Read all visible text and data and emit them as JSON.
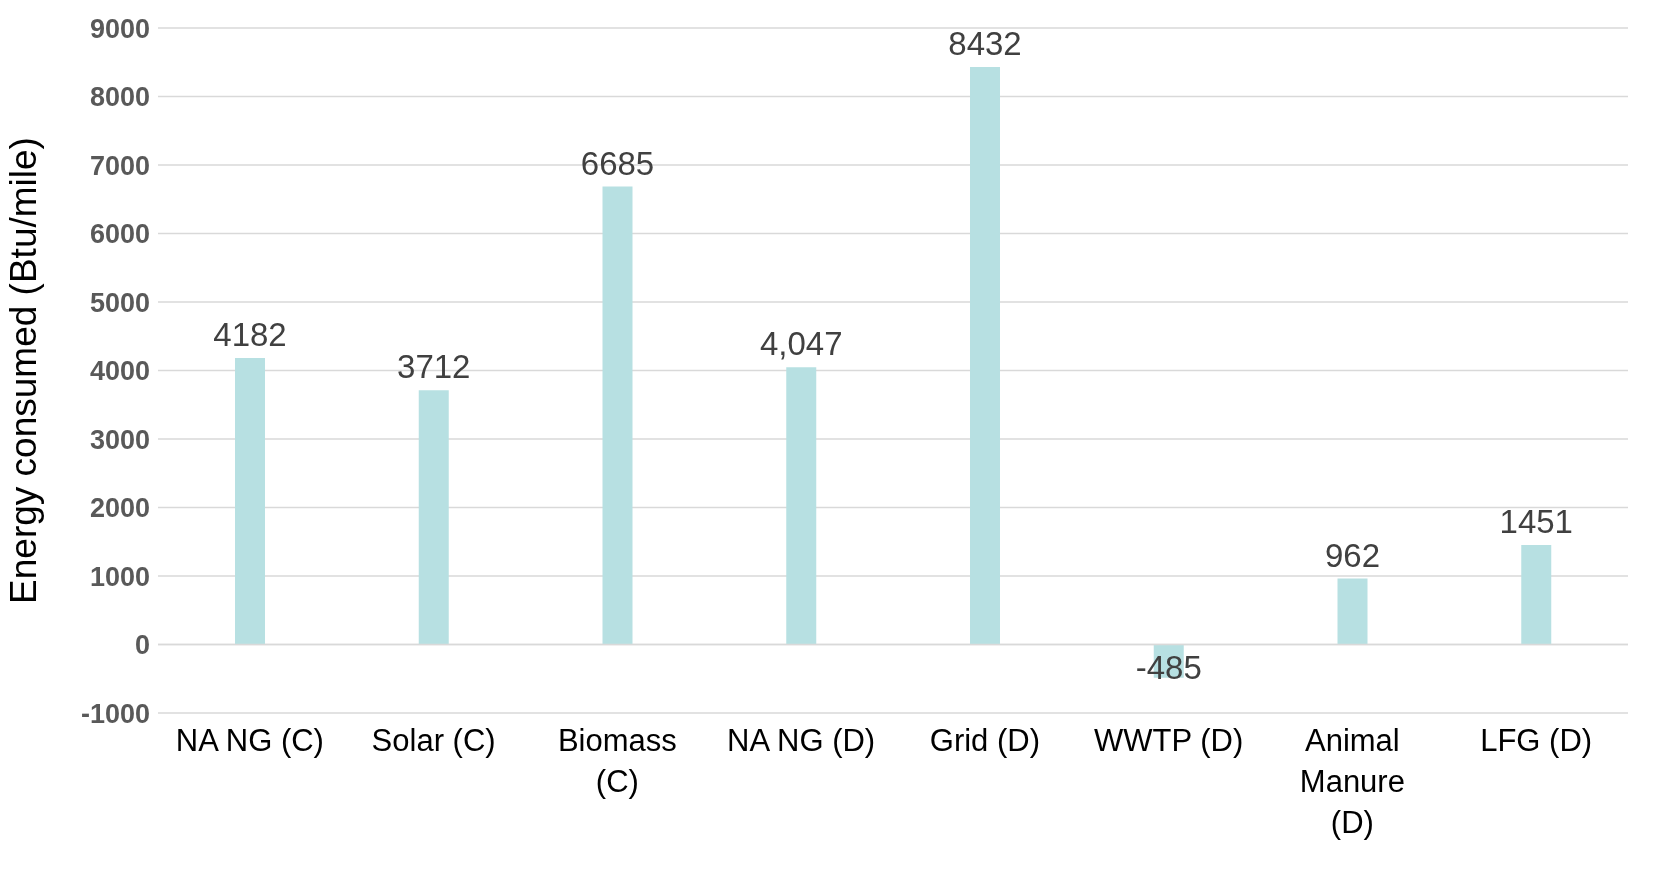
{
  "chart_data": {
    "type": "bar",
    "ylabel": "Energy consumed (Btu/mile)",
    "categories": [
      "NA NG (C)",
      "Solar (C)",
      "Biomass (C)",
      "NA NG (D)",
      "Grid (D)",
      "WWTP (D)",
      "Animal Manure (D)",
      "LFG (D)"
    ],
    "values": [
      4182,
      3712,
      6685,
      4047,
      8432,
      -485,
      962,
      1451
    ],
    "value_labels": [
      "4182",
      "3712",
      "6685",
      "4,047",
      "8432",
      "-485",
      "962",
      "1451"
    ],
    "color": "#b7e0e2",
    "ylim": [
      -1000,
      9000
    ],
    "yticks": [
      -1000,
      0,
      1000,
      2000,
      3000,
      4000,
      5000,
      6000,
      7000,
      8000,
      9000
    ],
    "grid": "y",
    "legend": false
  }
}
